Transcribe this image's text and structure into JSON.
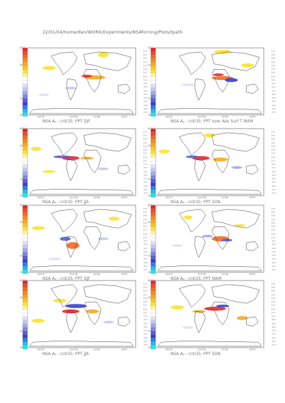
{
  "header": {
    "path": "22/01/04/home/dan/WORK/Experiments/NSAforcing/Plots/tpath"
  },
  "axis": {
    "lat_labels": [
      "80°N",
      "40°N",
      "0°",
      "40°S",
      "80°S"
    ],
    "lon_labels": [
      "150°E",
      "110°W",
      "10°W",
      "90°E"
    ]
  },
  "colorbar": {
    "colors": [
      "#e8262a",
      "#f04a24",
      "#f26b1e",
      "#f58a1c",
      "#f8a81d",
      "#fbc51f",
      "#fde22a",
      "#fff38a",
      "#ffffff",
      "#ffffff",
      "#dfe0f7",
      "#c4c6f0",
      "#a4a6ea",
      "#7f82e0",
      "#5a5cd6",
      "#3b3fcf",
      "#2d7de3",
      "#1fbcea",
      "#20e4ee"
    ],
    "labels": [
      "0.75",
      "0.67",
      "0.59",
      "0.51",
      "0.43",
      "0.35",
      "0.27",
      "0.19",
      "0.11",
      "-0.11",
      "-0.19",
      "-0.27",
      "-0.35",
      "-0.43",
      "-0.51",
      "-0.59",
      "-0.67",
      "-0.75"
    ]
  },
  "panels": [
    {
      "caption": "NSA Aₐ - cntl35: PPT DJF"
    },
    {
      "caption": "NSA Aₐ - cntl35: PPT over Abs Surf T MAM"
    },
    {
      "caption": "NSA Aₐ - cntl35: PPT JJA"
    },
    {
      "caption": "NSA Aₐ - cntl35: PPT SON"
    },
    {
      "caption": "NSA Aₐ - cntl35: PPT DJF"
    },
    {
      "caption": "NSA Aₐ - cntl35: PPT MAM"
    },
    {
      "caption": "NSA Aₐ - cntl35: PPT JJA"
    },
    {
      "caption": "NSA Aₐ - cntl35: PPT SON"
    }
  ]
}
